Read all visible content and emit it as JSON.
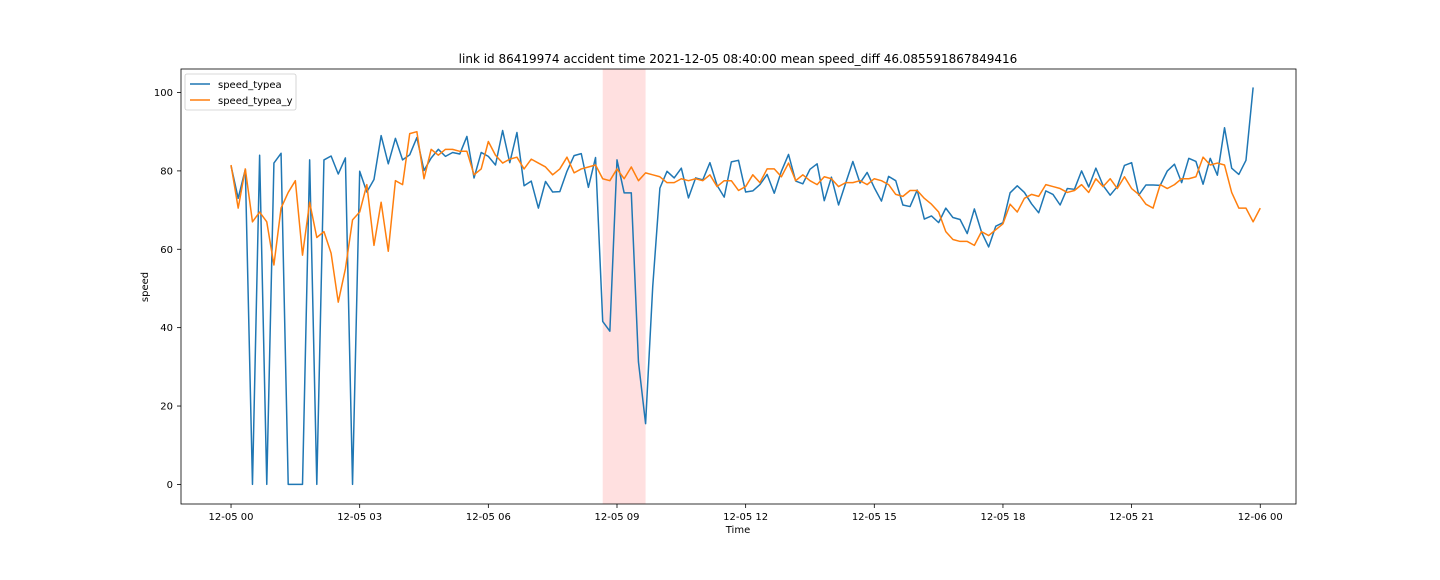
{
  "chart_data": {
    "type": "line",
    "title": "link id 86419974 accident time 2021-12-05 08:40:00 mean speed_diff 46.085591867849416",
    "xlabel": "Time",
    "ylabel": "speed",
    "x_start": "2021-12-05 00:00",
    "x_step_minutes": 10,
    "xlim": [
      "2021-12-04 22:50",
      "2021-12-06 00:50"
    ],
    "ylim": [
      -5,
      106
    ],
    "x_ticks": [
      "12-05 00",
      "12-05 03",
      "12-05 06",
      "12-05 09",
      "12-05 12",
      "12-05 15",
      "12-05 18",
      "12-05 21",
      "12-06 00"
    ],
    "y_ticks": [
      0,
      20,
      40,
      60,
      80,
      100
    ],
    "highlight_span": {
      "start": "2021-12-05 08:40",
      "end": "2021-12-05 09:40",
      "color": "#ffe0e0"
    },
    "legend_position": "upper-left",
    "grid": false,
    "series": [
      {
        "name": "speed_typea",
        "color": "#1f77b4",
        "values": [
          81.3,
          73,
          80.4,
          0,
          84,
          0,
          82,
          84.5,
          0,
          0,
          0,
          82.8,
          0,
          82.8,
          83.8,
          79.2,
          83.3,
          0,
          79.9,
          74.6,
          77.8,
          89,
          81.8,
          88.3,
          82.8,
          84.1,
          88.5,
          80.1,
          83.3,
          85.5,
          83.7,
          84.7,
          84.3,
          88.8,
          78.2,
          84.7,
          83.7,
          81.5,
          90.3,
          82.1,
          89.8,
          76.2,
          77.4,
          70.5,
          77.3,
          74.6,
          74.7,
          79.9,
          83.9,
          84.4,
          75.8,
          83.4,
          41.6,
          39.1,
          82.8,
          74.4,
          74.4,
          31.3,
          15.5,
          50.5,
          75.6,
          79.9,
          78.2,
          80.7,
          73.1,
          78.2,
          77.7,
          82.1,
          76.3,
          73.3,
          82.3,
          82.7,
          74.6,
          74.9,
          76.5,
          79.1,
          74.3,
          79.9,
          84.2,
          77.4,
          76.7,
          80.4,
          81.8,
          72.4,
          78.4,
          71.3,
          76.9,
          82.4,
          76.9,
          79.6,
          75.7,
          72.3,
          78.6,
          77.5,
          71.3,
          70.9,
          75.1,
          67.7,
          68.5,
          66.8,
          70.5,
          68.1,
          67.6,
          64,
          70.3,
          64.4,
          60.6,
          65.9,
          66.8,
          74.4,
          76.2,
          74.5,
          71.6,
          69.3,
          74.9,
          74,
          71.3,
          75.5,
          75.3,
          80,
          75.9,
          80.7,
          76.3,
          73.8,
          76,
          81.4,
          82.1,
          73.8,
          76.4,
          76.4,
          76.3,
          80,
          81.7,
          77,
          83.2,
          82.4,
          76.6,
          83.2,
          78.9,
          91,
          80.7,
          79.1,
          82.7,
          101.3
        ]
      },
      {
        "name": "speed_typea_y",
        "color": "#ff7f0e",
        "values": [
          81.5,
          70.5,
          80.5,
          67,
          69.5,
          67,
          56,
          70.5,
          74.5,
          77.5,
          58.5,
          72,
          63,
          64.5,
          59,
          46.5,
          55,
          67.5,
          69.5,
          76.5,
          61,
          72,
          59.5,
          77.5,
          76.5,
          89.5,
          90,
          78,
          85.5,
          84,
          85.5,
          85.5,
          85,
          85,
          79,
          80.5,
          87.5,
          84,
          82,
          83,
          83.5,
          80.5,
          83,
          82,
          81,
          79,
          80.5,
          83.5,
          79.5,
          80.5,
          81,
          81.5,
          78,
          77.5,
          80.5,
          78,
          81,
          77.5,
          79.5,
          79,
          78.5,
          77,
          77,
          78,
          77.5,
          78,
          77.5,
          79,
          76,
          77.5,
          77.5,
          75,
          76,
          79,
          77,
          80.5,
          80.5,
          78.5,
          82,
          77.5,
          79,
          77.5,
          76.5,
          78.5,
          78,
          76,
          77,
          77,
          77.5,
          76.5,
          78,
          77.5,
          76.5,
          74,
          73.5,
          75,
          75,
          73,
          71.5,
          69.5,
          64.5,
          62.5,
          62,
          62,
          61,
          64.5,
          63.5,
          65,
          66.5,
          71.5,
          69.5,
          73,
          74,
          73.5,
          76.5,
          76,
          75.5,
          74.5,
          75,
          76.5,
          74.5,
          78,
          76,
          78,
          75.5,
          78.5,
          75.5,
          74,
          71.5,
          70.5,
          76.5,
          75.5,
          76.5,
          78,
          78,
          78.5,
          83.5,
          81.5,
          82,
          81.5,
          74.5,
          70.5,
          70.5,
          67,
          70.5
        ]
      }
    ]
  }
}
